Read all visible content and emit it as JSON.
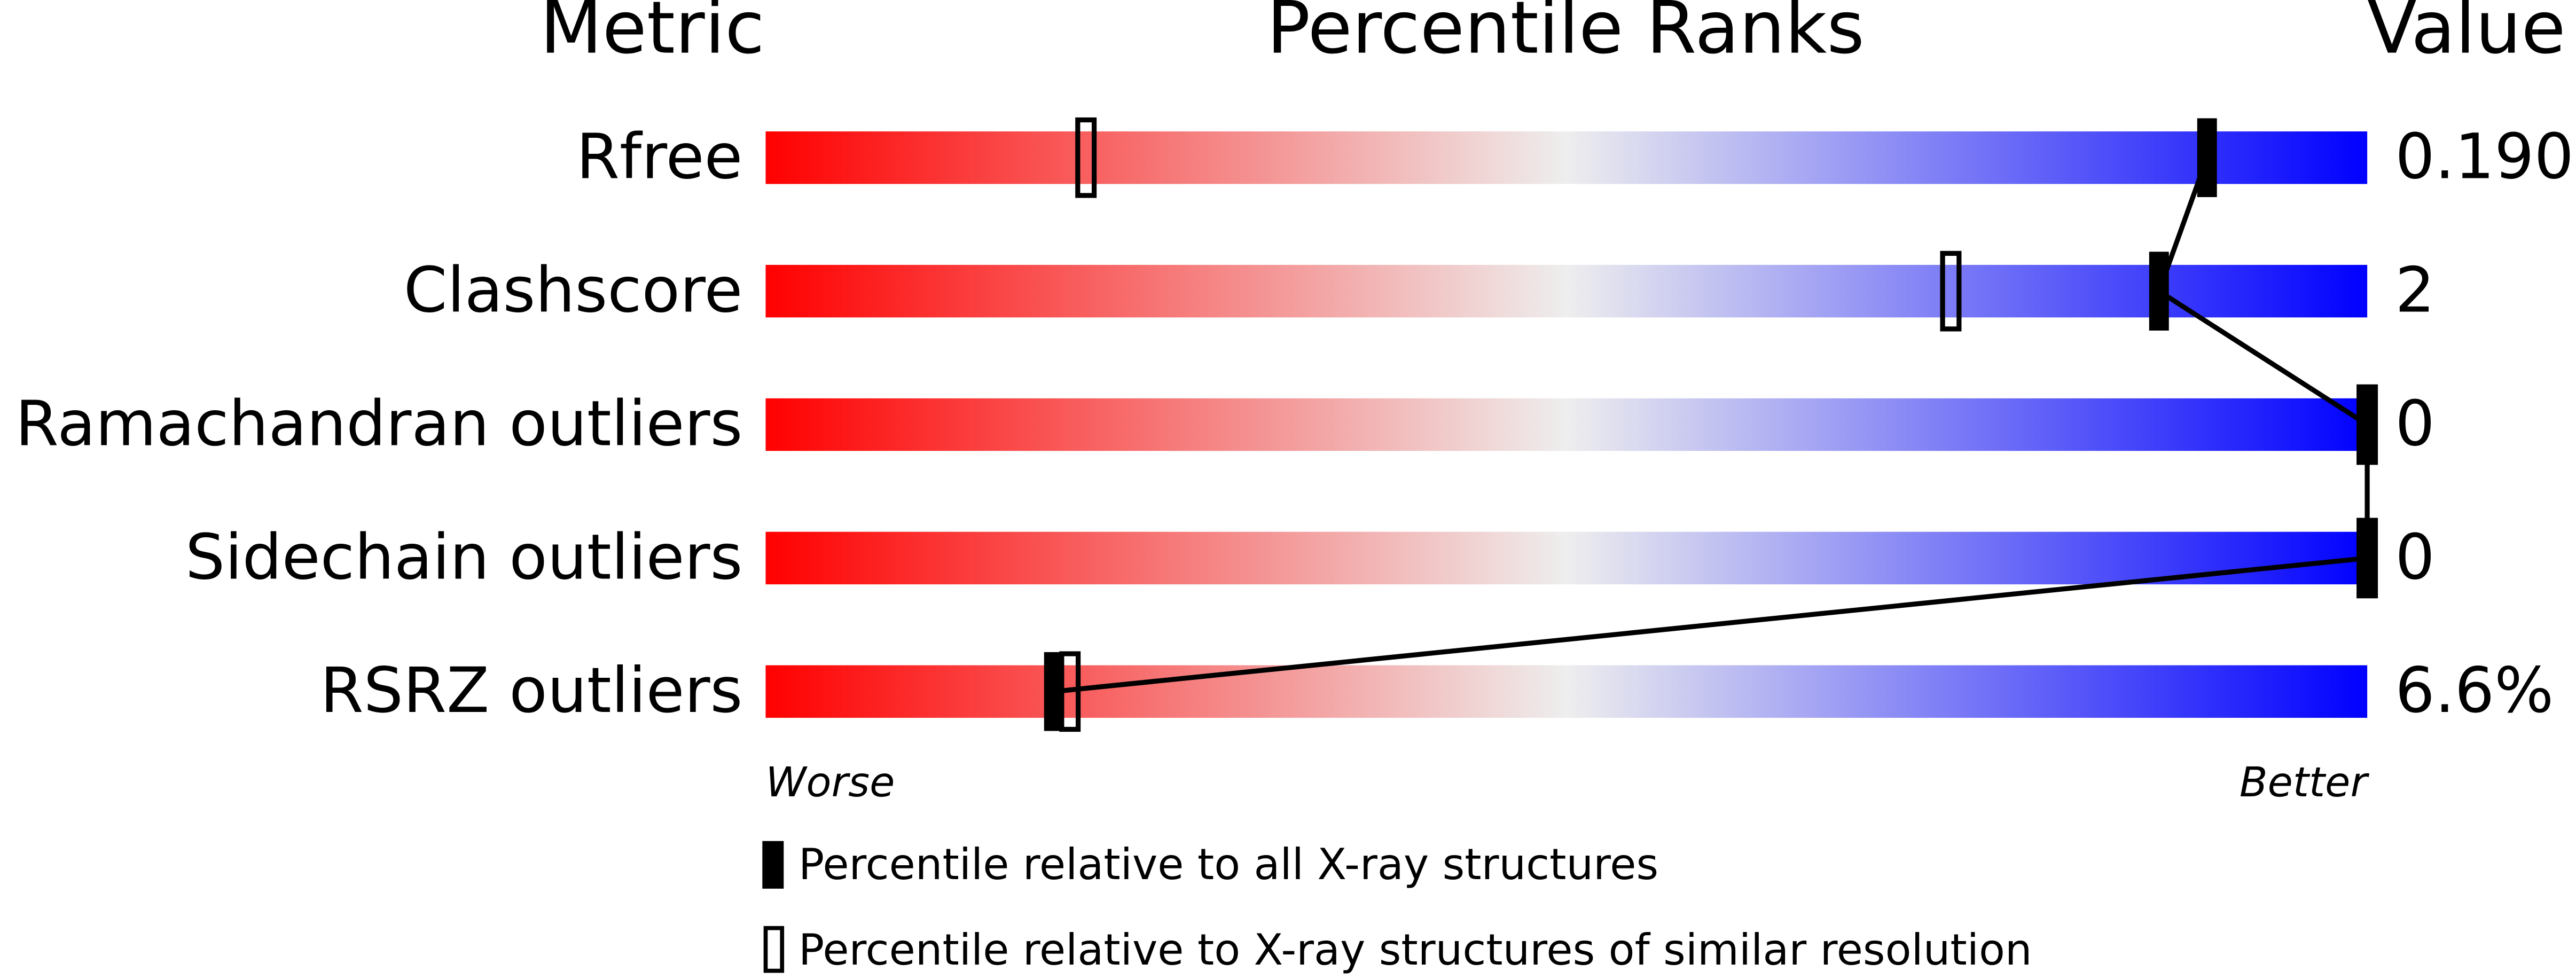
{
  "chart_data": {
    "type": "percentile-slider",
    "column_headers": [
      "Metric",
      "Percentile Ranks",
      "Value"
    ],
    "categories": [
      "Rfree",
      "Clashscore",
      "Ramachandran outliers",
      "Sidechain outliers",
      "RSRZ outliers"
    ],
    "metric_values": [
      "0.190",
      "2",
      "0",
      "0",
      "6.6%"
    ],
    "series": [
      {
        "name": "Percentile relative to all X-ray structures",
        "style": "filled",
        "color": "#000000",
        "values": [
          90,
          87,
          100,
          100,
          18
        ]
      },
      {
        "name": "Percentile relative to X-ray structures of similar resolution",
        "style": "outline",
        "color": "#000000",
        "values": [
          20,
          74,
          100,
          100,
          19
        ]
      }
    ],
    "xlim": [
      0,
      100
    ],
    "axis_end_labels": [
      "Worse",
      "Better"
    ],
    "gradient_colors": [
      "#ff0000",
      "#eeeeee",
      "#0000ff"
    ]
  }
}
